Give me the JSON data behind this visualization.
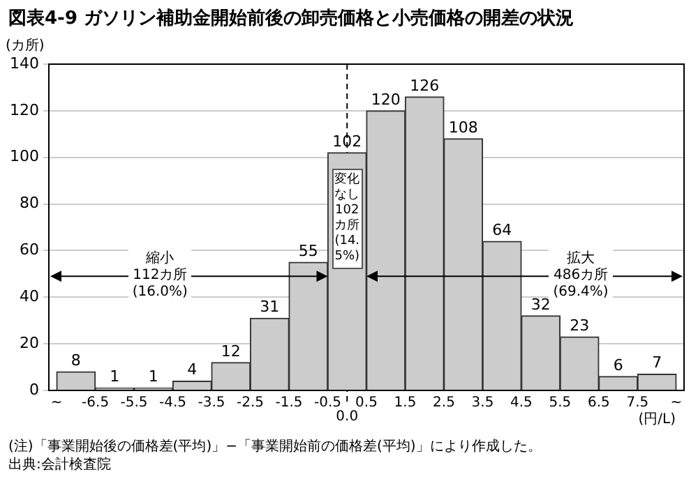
{
  "chart_data": {
    "type": "histogram",
    "title": "図表4-9 ガソリン補助金開始前後の卸売価格と小売価格の開差の状況",
    "ylabel": "(カ所)",
    "xlabel": "(円/L)",
    "bins": [
      -7.5,
      -6.5,
      -5.5,
      -4.5,
      -3.5,
      -2.5,
      -1.5,
      -0.5,
      0.5,
      1.5,
      2.5,
      3.5,
      4.5,
      5.5,
      6.5,
      7.5,
      8.5
    ],
    "values": [
      8,
      1,
      1,
      4,
      12,
      31,
      55,
      102,
      120,
      126,
      108,
      64,
      32,
      23,
      6,
      7
    ],
    "color": "#cccccc",
    "data_labels": true,
    "xlim": [
      -7.7,
      8.7
    ],
    "xticks": [
      {
        "value": -7.5,
        "label": "~"
      },
      -6.5,
      -5.5,
      -4.5,
      -3.5,
      -2.5,
      -1.5,
      -0.5,
      0.5,
      1.5,
      2.5,
      3.5,
      4.5,
      5.5,
      6.5,
      7.5,
      {
        "value": 8.5,
        "label": "~"
      }
    ],
    "ylim": [
      0,
      140
    ],
    "yticks": [
      0,
      20,
      40,
      60,
      80,
      100,
      120,
      140
    ],
    "grid": "y",
    "ref_lines": [
      {
        "axis": "x",
        "value": 0,
        "label": "0.0",
        "line_style": "dashed",
        "color": "#000000"
      }
    ],
    "annotations": [
      "縮小\n112カ所\n(16.0%)",
      "拡大\n486カ所\n(69.4%)",
      "変化なし102カ所(14.5%)",
      "(注)「事業開始後の価格差(平均)」−「事業開始前の価格差(平均)」により作成した。",
      "出典:会計検査院"
    ]
  }
}
